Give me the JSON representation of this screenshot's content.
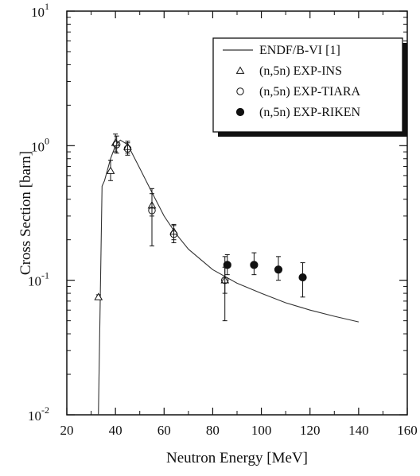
{
  "chart_data": {
    "type": "scatter",
    "title": "",
    "xlabel": "Neutron Energy [MeV]",
    "ylabel": "Cross Section [barn]",
    "xlim": [
      20,
      160
    ],
    "ylim": [
      0.01,
      10
    ],
    "yscale": "log",
    "grid": false,
    "legend_position": "top-right",
    "x_ticks": [
      {
        "value": 20,
        "label": "20"
      },
      {
        "value": 40,
        "label": "40"
      },
      {
        "value": 60,
        "label": "60"
      },
      {
        "value": 80,
        "label": "80"
      },
      {
        "value": 100,
        "label": "100"
      },
      {
        "value": 120,
        "label": "120"
      },
      {
        "value": 140,
        "label": "140"
      },
      {
        "value": 160,
        "label": "160"
      }
    ],
    "y_ticks": [
      {
        "value": 0.01,
        "label": "10",
        "exp": "-2"
      },
      {
        "value": 0.1,
        "label": "10",
        "exp": "-1"
      },
      {
        "value": 1,
        "label": "10",
        "exp": "0"
      },
      {
        "value": 10,
        "label": "10",
        "exp": "1"
      }
    ],
    "series": [
      {
        "name": "ENDF/B-VI [1]",
        "kind": "line",
        "x": [
          33,
          34.5,
          35.5,
          38,
          40,
          42,
          45,
          50,
          55,
          60,
          65,
          70,
          80,
          90,
          100,
          110,
          120,
          130,
          140
        ],
        "y": [
          0.01,
          0.5,
          0.55,
          0.8,
          1.0,
          1.1,
          1.02,
          0.68,
          0.45,
          0.3,
          0.22,
          0.17,
          0.12,
          0.095,
          0.08,
          0.068,
          0.06,
          0.054,
          0.049
        ]
      },
      {
        "name": "(n,5n) EXP-INS",
        "kind": "triangle",
        "points": [
          {
            "x": 33,
            "y": 0.075,
            "lo": 0.072,
            "hi": 0.078
          },
          {
            "x": 38,
            "y": 0.65,
            "lo": 0.55,
            "hi": 0.78
          },
          {
            "x": 40,
            "y": 1.05,
            "lo": 0.9,
            "hi": 1.22
          },
          {
            "x": 45,
            "y": 0.98,
            "lo": 0.88,
            "hi": 1.08
          },
          {
            "x": 55,
            "y": 0.36,
            "lo": 0.3,
            "hi": 0.44
          },
          {
            "x": 64,
            "y": 0.23,
            "lo": 0.2,
            "hi": 0.26
          },
          {
            "x": 85,
            "y": 0.1,
            "lo": 0.08,
            "hi": 0.125
          }
        ]
      },
      {
        "name": "(n,5n) EXP-TIARA",
        "kind": "circle-open",
        "points": [
          {
            "x": 40.5,
            "y": 1.02,
            "lo": 0.88,
            "hi": 1.18
          },
          {
            "x": 45,
            "y": 0.95,
            "lo": 0.85,
            "hi": 1.05
          },
          {
            "x": 55,
            "y": 0.33,
            "lo": 0.18,
            "hi": 0.48
          },
          {
            "x": 64,
            "y": 0.22,
            "lo": 0.19,
            "hi": 0.255
          },
          {
            "x": 85,
            "y": 0.1,
            "lo": 0.05,
            "hi": 0.15
          }
        ]
      },
      {
        "name": "(n,5n) EXP-RIKEN",
        "kind": "circle-filled",
        "points": [
          {
            "x": 86,
            "y": 0.13,
            "lo": 0.11,
            "hi": 0.155
          },
          {
            "x": 97,
            "y": 0.13,
            "lo": 0.11,
            "hi": 0.16
          },
          {
            "x": 107,
            "y": 0.12,
            "lo": 0.1,
            "hi": 0.15
          },
          {
            "x": 117,
            "y": 0.105,
            "lo": 0.075,
            "hi": 0.135
          }
        ]
      }
    ],
    "colors": {
      "ink": "#111111",
      "background": "#ffffff"
    }
  }
}
